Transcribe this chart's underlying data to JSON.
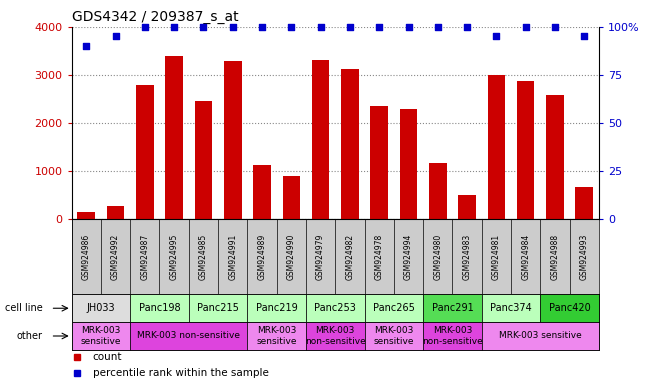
{
  "title": "GDS4342 / 209387_s_at",
  "samples": [
    "GSM924986",
    "GSM924992",
    "GSM924987",
    "GSM924995",
    "GSM924985",
    "GSM924991",
    "GSM924989",
    "GSM924990",
    "GSM924979",
    "GSM924982",
    "GSM924978",
    "GSM924994",
    "GSM924980",
    "GSM924983",
    "GSM924981",
    "GSM924984",
    "GSM924988",
    "GSM924993"
  ],
  "counts": [
    130,
    270,
    2780,
    3390,
    2450,
    3290,
    1110,
    900,
    3310,
    3120,
    2350,
    2280,
    1160,
    490,
    3000,
    2880,
    2580,
    660
  ],
  "percentiles": [
    90,
    95,
    100,
    100,
    100,
    100,
    100,
    100,
    100,
    100,
    100,
    100,
    100,
    100,
    95,
    100,
    100,
    95
  ],
  "bar_color": "#cc0000",
  "dot_color": "#0000cc",
  "ylim_left": [
    0,
    4000
  ],
  "ylim_right": [
    0,
    100
  ],
  "yticks_left": [
    0,
    1000,
    2000,
    3000,
    4000
  ],
  "yticks_right": [
    0,
    25,
    50,
    75,
    100
  ],
  "ytick_labels_right": [
    "0",
    "25",
    "50",
    "75",
    "100%"
  ],
  "cell_line_data": [
    {
      "label": "JH033",
      "start": 0,
      "end": 2,
      "color": "#dddddd"
    },
    {
      "label": "Panc198",
      "start": 2,
      "end": 4,
      "color": "#bbffbb"
    },
    {
      "label": "Panc215",
      "start": 4,
      "end": 6,
      "color": "#bbffbb"
    },
    {
      "label": "Panc219",
      "start": 6,
      "end": 8,
      "color": "#bbffbb"
    },
    {
      "label": "Panc253",
      "start": 8,
      "end": 10,
      "color": "#bbffbb"
    },
    {
      "label": "Panc265",
      "start": 10,
      "end": 12,
      "color": "#bbffbb"
    },
    {
      "label": "Panc291",
      "start": 12,
      "end": 14,
      "color": "#55dd55"
    },
    {
      "label": "Panc374",
      "start": 14,
      "end": 16,
      "color": "#bbffbb"
    },
    {
      "label": "Panc420",
      "start": 16,
      "end": 18,
      "color": "#33cc33"
    }
  ],
  "other_data": [
    {
      "label": "MRK-003\nsensitive",
      "start": 0,
      "end": 2,
      "color": "#ee88ee"
    },
    {
      "label": "MRK-003 non-sensitive",
      "start": 2,
      "end": 6,
      "color": "#dd44dd"
    },
    {
      "label": "MRK-003\nsensitive",
      "start": 6,
      "end": 8,
      "color": "#ee88ee"
    },
    {
      "label": "MRK-003\nnon-sensitive",
      "start": 8,
      "end": 10,
      "color": "#dd44dd"
    },
    {
      "label": "MRK-003\nsensitive",
      "start": 10,
      "end": 12,
      "color": "#ee88ee"
    },
    {
      "label": "MRK-003\nnon-sensitive",
      "start": 12,
      "end": 14,
      "color": "#dd44dd"
    },
    {
      "label": "MRK-003 sensitive",
      "start": 14,
      "end": 18,
      "color": "#ee88ee"
    }
  ],
  "sample_bg_color": "#cccccc",
  "background_color": "#ffffff",
  "grid_color": "#888888",
  "legend_count_color": "#cc0000",
  "legend_pct_color": "#0000cc"
}
